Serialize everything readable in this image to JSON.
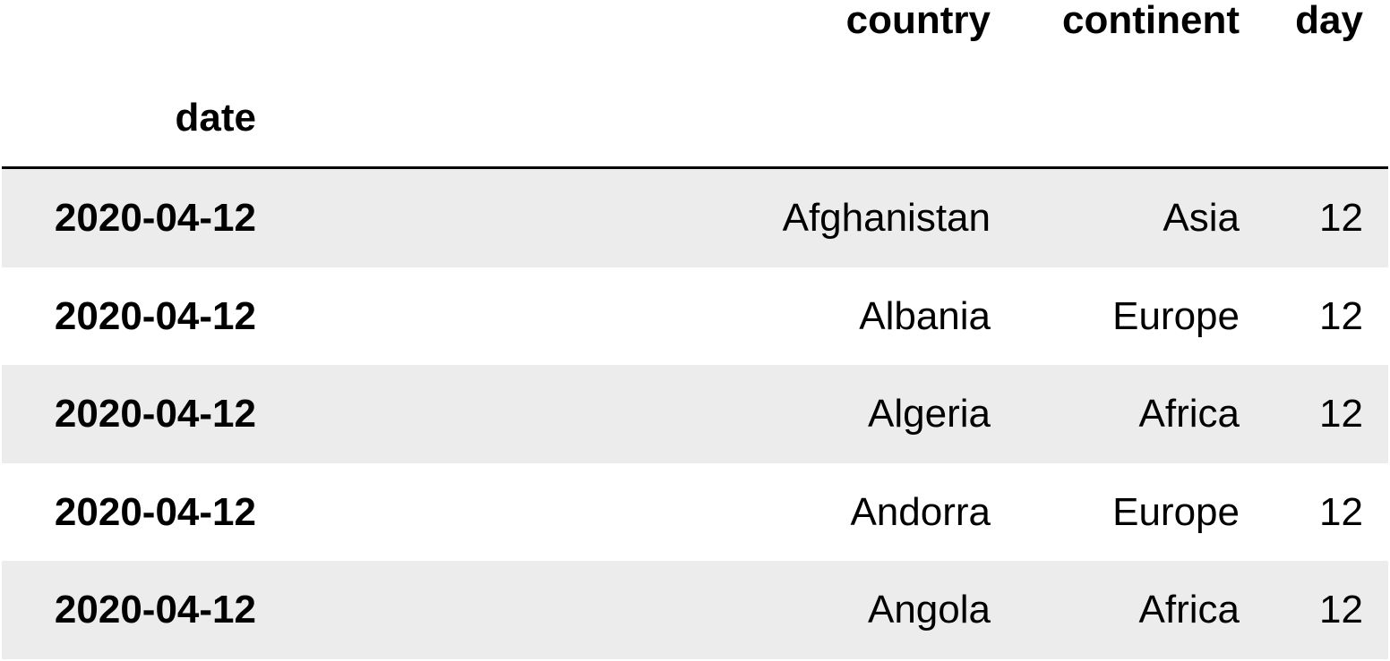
{
  "table": {
    "columns": [
      "country",
      "continent",
      "day"
    ],
    "index_name": "date",
    "rows": [
      {
        "index": "2020-04-12",
        "country": "Afghanistan",
        "continent": "Asia",
        "day": "12"
      },
      {
        "index": "2020-04-12",
        "country": "Albania",
        "continent": "Europe",
        "day": "12"
      },
      {
        "index": "2020-04-12",
        "country": "Algeria",
        "continent": "Africa",
        "day": "12"
      },
      {
        "index": "2020-04-12",
        "country": "Andorra",
        "continent": "Europe",
        "day": "12"
      },
      {
        "index": "2020-04-12",
        "country": "Angola",
        "continent": "Africa",
        "day": "12"
      }
    ]
  },
  "colors": {
    "stripe": "#ececec",
    "background": "#ffffff",
    "text": "#000000"
  }
}
